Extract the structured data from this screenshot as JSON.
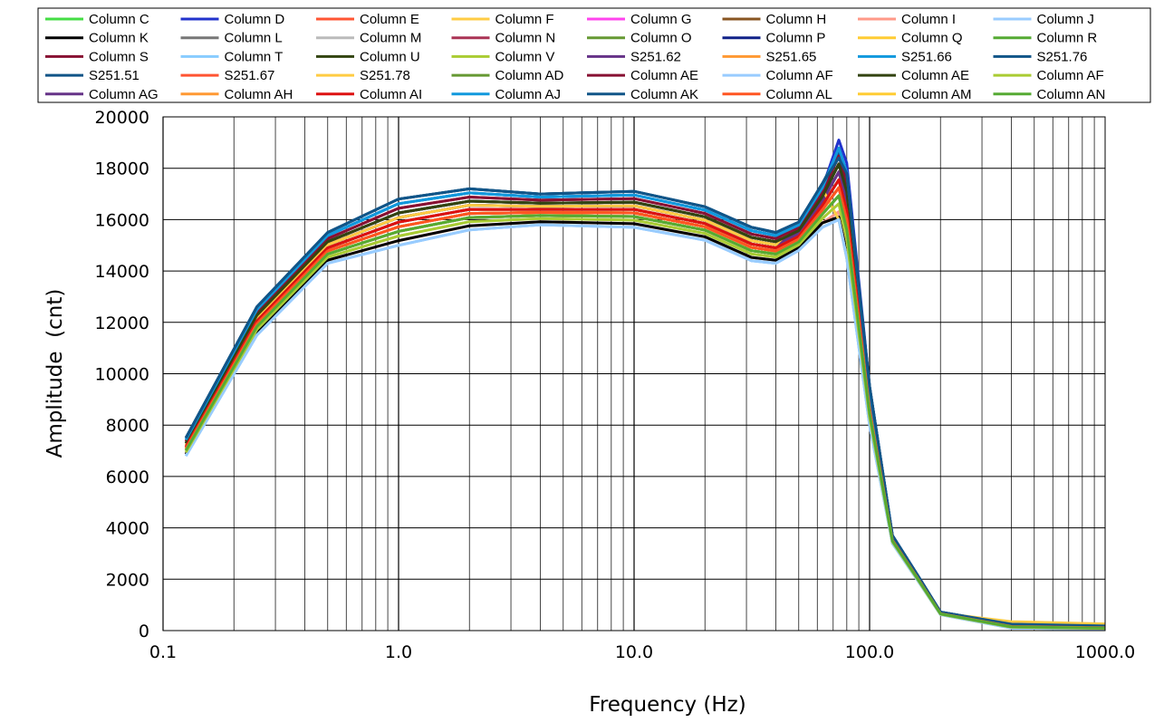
{
  "chart_data": {
    "type": "line",
    "title": "",
    "xlabel": "Frequency (Hz)",
    "ylabel": "Amplitude  (cnt)",
    "xscale": "log",
    "xlim": [
      0.1,
      1000
    ],
    "ylim": [
      0,
      20000
    ],
    "grid": true,
    "legend_placement": "top",
    "xticks": [
      "0.1",
      "1.0",
      "10.0",
      "100.0",
      "1000.0"
    ],
    "yticks": [
      "0",
      "2000",
      "4000",
      "6000",
      "8000",
      "10000",
      "12000",
      "14000",
      "16000",
      "18000",
      "20000"
    ],
    "x": [
      0.125,
      0.25,
      0.5,
      1,
      2,
      4,
      10,
      20,
      31.5,
      40,
      50,
      63,
      74,
      80,
      100,
      125,
      160,
      200,
      400,
      1000
    ],
    "series": [
      {
        "name": "Column C",
        "color": "#44dd44",
        "values": [
          7010,
          11830,
          14660,
          15540,
          16080,
          16160,
          16120,
          15590,
          14790,
          14660,
          15130,
          16210,
          16930,
          15610,
          8450,
          3490,
          2010,
          650,
          145,
          96
        ]
      },
      {
        "name": "Column D",
        "color": "#2233cc",
        "values": [
          7430,
          12490,
          15380,
          16620,
          17040,
          16880,
          16960,
          16370,
          15570,
          15380,
          15790,
          17230,
          19100,
          18200,
          9500,
          3700,
          2150,
          720,
          235,
          168
        ]
      },
      {
        "name": "Column E",
        "color": "#ff5533",
        "values": [
          7080,
          11940,
          14780,
          15720,
          16240,
          16280,
          16260,
          15720,
          14920,
          14780,
          15240,
          16380,
          17240,
          15980,
          8600,
          3520,
          2030,
          660,
          160,
          108
        ]
      },
      {
        "name": "Column F",
        "color": "#ffcc44",
        "values": [
          7150,
          12050,
          14900,
          15900,
          16400,
          16400,
          16400,
          15850,
          15050,
          14900,
          15350,
          16550,
          17550,
          16350,
          8750,
          3550,
          2050,
          670,
          175,
          120
        ]
      },
      {
        "name": "Column G",
        "color": "#ff44ee",
        "values": [
          7010,
          11830,
          14660,
          15540,
          16080,
          16160,
          16120,
          15590,
          14790,
          14660,
          15130,
          16210,
          16930,
          15610,
          8450,
          3490,
          2010,
          650,
          145,
          96
        ]
      },
      {
        "name": "Column H",
        "color": "#885522",
        "values": [
          7220,
          12160,
          15020,
          16080,
          16560,
          16520,
          16540,
          15980,
          15180,
          15020,
          15460,
          16720,
          17860,
          16720,
          8900,
          3580,
          2070,
          680,
          190,
          132
        ]
      },
      {
        "name": "Column I",
        "color": "#ff9988",
        "values": [
          6870,
          11610,
          14420,
          15180,
          15760,
          15920,
          15840,
          15330,
          14530,
          14420,
          14910,
          15870,
          16310,
          14870,
          8150,
          3430,
          1970,
          630,
          115,
          72
        ]
      },
      {
        "name": "Column J",
        "color": "#99ccff",
        "values": [
          6800,
          11500,
          14300,
          15000,
          15600,
          15800,
          15700,
          15200,
          14400,
          14300,
          14800,
          15700,
          16000,
          14500,
          8000,
          3400,
          1950,
          620,
          100,
          60
        ]
      },
      {
        "name": "Column K",
        "color": "#000000",
        "values": [
          6870,
          11610,
          14420,
          15180,
          15760,
          15920,
          15840,
          15330,
          14530,
          14420,
          14910,
          15870,
          16100,
          14700,
          8150,
          3430,
          1970,
          630,
          115,
          72
        ]
      },
      {
        "name": "Column L",
        "color": "#777777",
        "values": [
          7220,
          12160,
          15020,
          16080,
          16560,
          16520,
          16540,
          15980,
          15180,
          15020,
          15460,
          16720,
          17860,
          16720,
          8900,
          3580,
          2070,
          680,
          190,
          132
        ]
      },
      {
        "name": "Column M",
        "color": "#bbbbbb",
        "values": [
          6940,
          11720,
          14540,
          15360,
          15920,
          16040,
          15980,
          15460,
          14660,
          14540,
          15020,
          16040,
          16620,
          15240,
          8300,
          3460,
          1990,
          640,
          130,
          84
        ]
      },
      {
        "name": "Column N",
        "color": "#aa3355",
        "values": [
          7150,
          12050,
          14900,
          15900,
          16400,
          16400,
          16400,
          15850,
          15050,
          14900,
          15350,
          16550,
          17550,
          16350,
          8750,
          3550,
          2050,
          670,
          175,
          120
        ]
      },
      {
        "name": "Column O",
        "color": "#669933",
        "values": [
          7080,
          11940,
          14780,
          15720,
          16240,
          16280,
          16260,
          15720,
          14920,
          14780,
          15240,
          16380,
          17240,
          15980,
          8600,
          3520,
          2030,
          660,
          160,
          108
        ]
      },
      {
        "name": "Column P",
        "color": "#112288",
        "values": [
          7290,
          12270,
          15140,
          16260,
          16720,
          16640,
          16680,
          16110,
          15310,
          15140,
          15570,
          16890,
          18170,
          17090,
          9050,
          3610,
          2090,
          690,
          205,
          144
        ]
      },
      {
        "name": "Column Q",
        "color": "#ffcc33",
        "values": [
          7150,
          12050,
          14900,
          15900,
          16400,
          16400,
          16400,
          15850,
          15050,
          14900,
          15350,
          16550,
          17550,
          16350,
          8750,
          3550,
          2050,
          670,
          175,
          120
        ]
      },
      {
        "name": "Column R",
        "color": "#55aa33",
        "values": [
          7010,
          11830,
          14660,
          15540,
          16080,
          16160,
          16120,
          15590,
          14790,
          14660,
          15130,
          16210,
          16930,
          15610,
          8450,
          3490,
          2010,
          650,
          145,
          96
        ]
      },
      {
        "name": "Column S",
        "color": "#881133",
        "values": [
          7360,
          12380,
          15260,
          16440,
          16880,
          16760,
          16820,
          16240,
          15440,
          15260,
          15680,
          17060,
          18480,
          17460,
          9200,
          3640,
          2110,
          700,
          220,
          156
        ]
      },
      {
        "name": "Column T",
        "color": "#88ccff",
        "values": [
          6800,
          11500,
          14300,
          15000,
          15600,
          15800,
          15700,
          15200,
          14400,
          14300,
          14800,
          15700,
          16000,
          14500,
          8000,
          3400,
          1950,
          620,
          100,
          60
        ]
      },
      {
        "name": "Column U",
        "color": "#334411",
        "values": [
          7290,
          12270,
          15140,
          16260,
          16720,
          16640,
          16680,
          16110,
          15310,
          15140,
          15570,
          16890,
          18170,
          17090,
          9050,
          3610,
          2090,
          690,
          205,
          144
        ]
      },
      {
        "name": "Column V",
        "color": "#aacc33",
        "values": [
          7080,
          11940,
          14780,
          15720,
          16240,
          16280,
          16260,
          15720,
          14920,
          14780,
          15240,
          16380,
          17240,
          15980,
          8600,
          3520,
          2030,
          660,
          160,
          108
        ]
      },
      {
        "name": "S251.62",
        "color": "#663388",
        "values": [
          7220,
          12160,
          15020,
          16080,
          16560,
          16520,
          16540,
          15980,
          15180,
          15020,
          15460,
          16720,
          17860,
          16720,
          8900,
          3580,
          2070,
          680,
          190,
          132
        ]
      },
      {
        "name": "S251.65",
        "color": "#ff9933",
        "values": [
          7150,
          12050,
          14900,
          15900,
          16400,
          16400,
          16400,
          15850,
          15050,
          14900,
          15350,
          16550,
          17550,
          16350,
          8750,
          3550,
          2050,
          670,
          175,
          120
        ]
      },
      {
        "name": "S251.66",
        "color": "#1199dd",
        "values": [
          7430,
          12490,
          15380,
          16620,
          17040,
          16880,
          16960,
          16370,
          15570,
          15380,
          15790,
          17230,
          18790,
          17830,
          9350,
          3670,
          2130,
          710,
          235,
          168
        ]
      },
      {
        "name": "S251.76",
        "color": "#115588",
        "values": [
          7500,
          12600,
          15500,
          16800,
          17200,
          17000,
          17100,
          16500,
          15700,
          15500,
          15900,
          17400,
          18600,
          17800,
          9500,
          3700,
          2150,
          720,
          250,
          180
        ]
      },
      {
        "name": "S251.51",
        "color": "#115588",
        "values": [
          7500,
          12600,
          15500,
          16800,
          17200,
          17000,
          17100,
          16500,
          15700,
          15500,
          15900,
          17400,
          18600,
          17800,
          9500,
          3700,
          2150,
          720,
          250,
          180
        ]
      },
      {
        "name": "S251.67",
        "color": "#ff5533",
        "values": [
          7080,
          11940,
          14780,
          15720,
          16240,
          16280,
          16260,
          15720,
          14920,
          14780,
          15240,
          16380,
          17240,
          15980,
          8600,
          3520,
          2030,
          660,
          160,
          108
        ]
      },
      {
        "name": "S251.78",
        "color": "#ffcc44",
        "values": [
          7220,
          12160,
          15020,
          16080,
          16560,
          16520,
          16540,
          15980,
          15180,
          15020,
          15900,
          17200,
          16000,
          14500,
          8900,
          3580,
          2070,
          680,
          350,
          260
        ]
      },
      {
        "name": "Column AD",
        "color": "#669933",
        "values": [
          7010,
          11830,
          14660,
          15540,
          16080,
          16160,
          16120,
          15590,
          14790,
          14660,
          15130,
          16210,
          16930,
          15610,
          8450,
          3490,
          2010,
          650,
          145,
          96
        ]
      },
      {
        "name": "Column AE",
        "color": "#881133",
        "values": [
          7360,
          12380,
          15260,
          16440,
          16880,
          16760,
          16820,
          16240,
          15440,
          15260,
          15680,
          17060,
          18480,
          17460,
          9200,
          3640,
          2110,
          700,
          220,
          156
        ]
      },
      {
        "name": "Column AF",
        "color": "#99ccff",
        "values": [
          6800,
          11500,
          14300,
          15000,
          15600,
          15800,
          15700,
          15200,
          14400,
          14300,
          14800,
          15700,
          16000,
          14500,
          8000,
          3400,
          1950,
          620,
          100,
          60
        ]
      },
      {
        "name": "Column AE",
        "color": "#334411",
        "values": [
          7290,
          12270,
          15140,
          16260,
          16720,
          16640,
          16680,
          16110,
          15310,
          15140,
          15570,
          16890,
          18170,
          17090,
          9050,
          3610,
          2090,
          690,
          205,
          144
        ]
      },
      {
        "name": "Column AF",
        "color": "#aacc33",
        "values": [
          6940,
          11720,
          14540,
          15360,
          15920,
          16040,
          15980,
          15460,
          14660,
          14540,
          15020,
          16040,
          16620,
          15240,
          8300,
          3460,
          1990,
          640,
          130,
          84
        ]
      },
      {
        "name": "Column AG",
        "color": "#663388",
        "values": [
          7150,
          12050,
          14900,
          15900,
          16400,
          16400,
          16400,
          15850,
          15050,
          14900,
          15350,
          16550,
          17550,
          16350,
          8750,
          3550,
          2050,
          670,
          175,
          120
        ]
      },
      {
        "name": "Column AH",
        "color": "#ff9933",
        "values": [
          7080,
          11940,
          14780,
          15720,
          16240,
          16280,
          16260,
          15720,
          14920,
          14780,
          15240,
          16380,
          17240,
          15980,
          8600,
          3520,
          2030,
          660,
          160,
          108
        ]
      },
      {
        "name": "Column AI",
        "color": "#dd1111",
        "values": [
          7150,
          12050,
          14900,
          15900,
          16400,
          16400,
          16400,
          15850,
          15050,
          14900,
          15350,
          16550,
          17550,
          16350,
          8750,
          3550,
          2050,
          670,
          175,
          120
        ]
      },
      {
        "name": "Column AJ",
        "color": "#1199dd",
        "values": [
          7430,
          12490,
          15380,
          16620,
          17040,
          16880,
          16960,
          16370,
          15570,
          15380,
          15790,
          17230,
          18790,
          17830,
          9350,
          3670,
          2130,
          710,
          235,
          168
        ]
      },
      {
        "name": "Column AK",
        "color": "#115588",
        "values": [
          7500,
          12600,
          15500,
          16800,
          17200,
          17000,
          17100,
          16500,
          15700,
          15500,
          15900,
          17400,
          18400,
          17800,
          9500,
          3700,
          2150,
          720,
          250,
          180
        ]
      },
      {
        "name": "Column AL",
        "color": "#ff5522",
        "values": [
          7080,
          11940,
          14780,
          15720,
          16240,
          16280,
          16260,
          15720,
          14920,
          14780,
          15240,
          16380,
          17240,
          15980,
          8600,
          3520,
          2030,
          660,
          160,
          108
        ]
      },
      {
        "name": "Column AM",
        "color": "#ffcc33",
        "values": [
          7010,
          11830,
          14660,
          15540,
          16080,
          16160,
          16120,
          15590,
          14790,
          14660,
          15130,
          16210,
          16930,
          15610,
          8450,
          3490,
          2010,
          650,
          145,
          96
        ]
      },
      {
        "name": "Column AN",
        "color": "#55aa33",
        "values": [
          7010,
          11830,
          14660,
          15540,
          16080,
          16160,
          16120,
          15590,
          14790,
          14660,
          15130,
          16210,
          16930,
          15610,
          8450,
          3490,
          2010,
          650,
          145,
          96
        ]
      }
    ]
  }
}
